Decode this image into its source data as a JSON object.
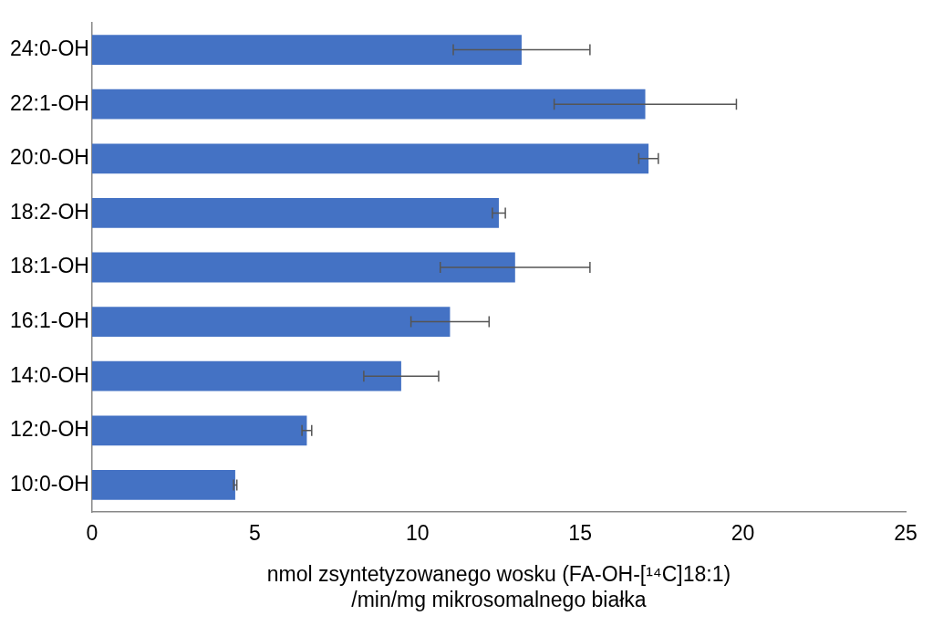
{
  "chart_data": {
    "type": "bar",
    "orientation": "horizontal",
    "categories": [
      "24:0-OH",
      "22:1-OH",
      "20:0-OH",
      "18:2-OH",
      "18:1-OH",
      "16:1-OH",
      "14:0-OH",
      "12:0-OH",
      "10:0-OH"
    ],
    "values": [
      13.2,
      17.0,
      17.1,
      12.5,
      13.0,
      11.0,
      9.5,
      6.6,
      4.4
    ],
    "errors": [
      2.1,
      2.8,
      0.3,
      0.2,
      2.3,
      1.2,
      1.15,
      0.15,
      0.05
    ],
    "color": "#4472c4",
    "xlim": [
      0,
      25
    ],
    "xticks": [
      0,
      5,
      10,
      15,
      20,
      25
    ],
    "grid": false,
    "legend": false,
    "xlabel": "nmol zsyntetyzowanego wosku (FA-OH-[¹⁴C]18:1)\n/min/mg mikrosomalnego białka"
  }
}
